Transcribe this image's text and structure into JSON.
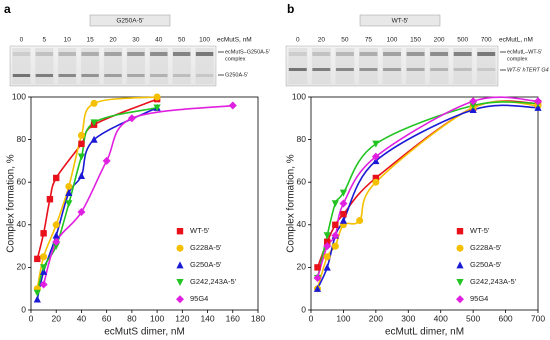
{
  "panels": [
    {
      "label": "a",
      "sample": "G250A-5'",
      "titration": "ecMutS, nM",
      "lanes": [
        0,
        5,
        10,
        15,
        20,
        30,
        40,
        50,
        100
      ],
      "complex_label": [
        "ecMutS–G250A-5'",
        "complex"
      ],
      "free_label": "G250A-5'"
    },
    {
      "label": "b",
      "sample": "WT-5'",
      "titration": "ecMutL, nM",
      "lanes": [
        0,
        20,
        50,
        75,
        100,
        150,
        200,
        500,
        700
      ],
      "complex_label": [
        "ecMutL–WT-5'",
        "complex"
      ],
      "free_label": "WT-5' hTERT G4"
    }
  ],
  "chart_data": [
    {
      "type": "scatter",
      "xlabel": "ecMutS dimer, nM",
      "ylabel": "Complex formation, %",
      "xlim": [
        0,
        180
      ],
      "xticks": [
        0,
        20,
        40,
        60,
        80,
        100,
        120,
        140,
        160,
        180
      ],
      "ylim": [
        0,
        100
      ],
      "yticks": [
        0,
        20,
        40,
        60,
        80,
        100
      ],
      "legend": "right",
      "series": [
        {
          "name": "WT-5'",
          "color": "#e8101a",
          "marker": "square",
          "x": [
            5,
            10,
            15,
            20,
            40,
            50,
            100
          ],
          "values": [
            24,
            36,
            52,
            62,
            78,
            87,
            99
          ]
        },
        {
          "name": "G228A-5'",
          "color": "#f5c000",
          "marker": "circle",
          "x": [
            5,
            10,
            20,
            30,
            40,
            50,
            100
          ],
          "values": [
            10,
            25,
            40,
            58,
            82,
            97,
            100
          ]
        },
        {
          "name": "G250A-5'",
          "color": "#1a1ad6",
          "marker": "triangle-up",
          "x": [
            5,
            10,
            20,
            30,
            40,
            50,
            100
          ],
          "values": [
            5,
            18,
            35,
            55,
            63,
            80,
            95
          ]
        },
        {
          "name": "G242,243A-5'",
          "color": "#22c422",
          "marker": "triangle-down",
          "x": [
            5,
            10,
            20,
            30,
            40,
            50,
            100
          ],
          "values": [
            8,
            20,
            30,
            50,
            72,
            88,
            95
          ]
        },
        {
          "name": "95G4",
          "color": "#e020e0",
          "marker": "diamond",
          "x": [
            10,
            20,
            40,
            60,
            80,
            160
          ],
          "values": [
            12,
            32,
            46,
            70,
            90,
            96
          ]
        }
      ]
    },
    {
      "type": "scatter",
      "xlabel": "ecMutL dimer, nM",
      "ylabel": "Complex formation, %",
      "xlim": [
        0,
        700
      ],
      "xticks": [
        0,
        100,
        200,
        300,
        400,
        500,
        600,
        700
      ],
      "ylim": [
        0,
        100
      ],
      "yticks": [
        0,
        20,
        40,
        60,
        80,
        100
      ],
      "legend": "right",
      "series": [
        {
          "name": "WT-5'",
          "color": "#e8101a",
          "marker": "square",
          "x": [
            20,
            50,
            75,
            100,
            200,
            500,
            700
          ],
          "values": [
            20,
            32,
            40,
            45,
            62,
            95,
            97
          ]
        },
        {
          "name": "G228A-5'",
          "color": "#f5c000",
          "marker": "circle",
          "x": [
            20,
            50,
            75,
            100,
            150,
            200,
            500,
            700
          ],
          "values": [
            10,
            25,
            30,
            40,
            42,
            60,
            95,
            96
          ]
        },
        {
          "name": "G250A-5'",
          "color": "#1a1ad6",
          "marker": "triangle-up",
          "x": [
            20,
            50,
            75,
            100,
            200,
            500,
            700
          ],
          "values": [
            10,
            20,
            35,
            42,
            70,
            94,
            95
          ]
        },
        {
          "name": "G242,243A-5'",
          "color": "#22c422",
          "marker": "triangle-down",
          "x": [
            20,
            50,
            75,
            100,
            200,
            500,
            700
          ],
          "values": [
            15,
            35,
            50,
            55,
            78,
            96,
            97
          ]
        },
        {
          "name": "95G4",
          "color": "#e020e0",
          "marker": "diamond",
          "x": [
            20,
            50,
            75,
            100,
            200,
            500,
            700
          ],
          "values": [
            15,
            30,
            35,
            50,
            72,
            98,
            98
          ]
        }
      ]
    }
  ]
}
